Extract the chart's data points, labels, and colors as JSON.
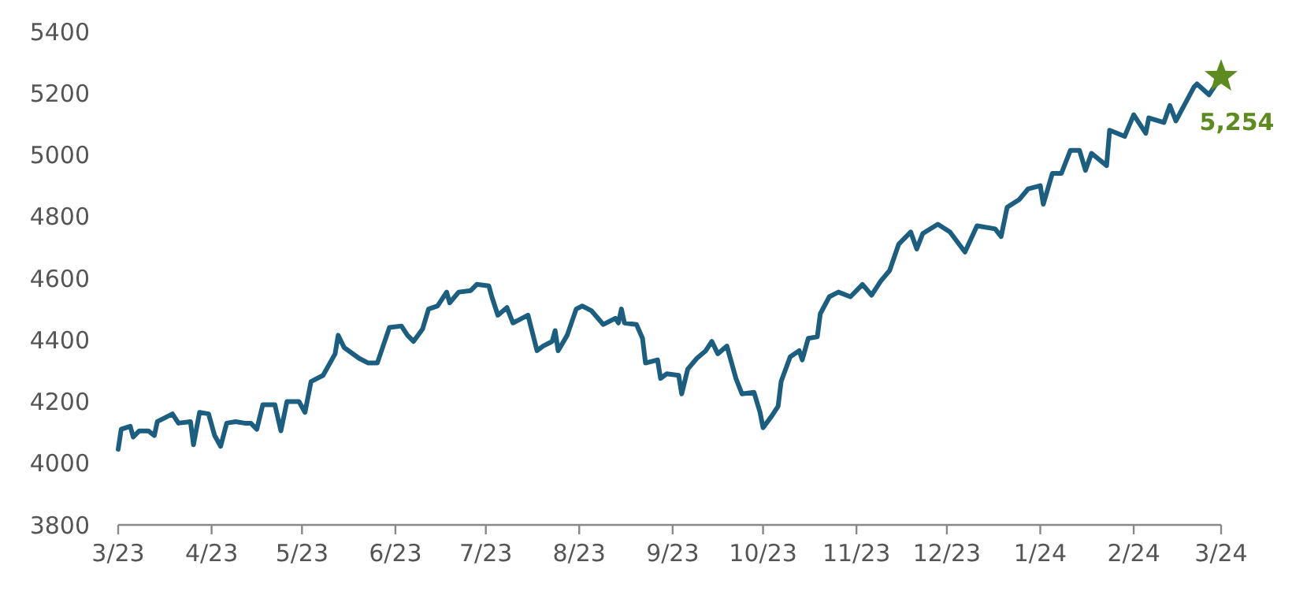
{
  "chart_data": {
    "type": "line",
    "ylim": [
      3800,
      5400
    ],
    "yticks": [
      3800,
      4000,
      4200,
      4400,
      4600,
      4800,
      5000,
      5200,
      5400
    ],
    "xlim": [
      "2023-03-01",
      "2024-03-01"
    ],
    "xticks": [
      {
        "value": "2023-03-01",
        "label": "3/23"
      },
      {
        "value": "2023-04-01",
        "label": "4/23"
      },
      {
        "value": "2023-05-01",
        "label": "5/23"
      },
      {
        "value": "2023-06-01",
        "label": "6/23"
      },
      {
        "value": "2023-07-01",
        "label": "7/23"
      },
      {
        "value": "2023-08-01",
        "label": "8/23"
      },
      {
        "value": "2023-09-01",
        "label": "9/23"
      },
      {
        "value": "2023-10-01",
        "label": "10/23"
      },
      {
        "value": "2023-11-01",
        "label": "11/23"
      },
      {
        "value": "2023-12-01",
        "label": "12/23"
      },
      {
        "value": "2024-01-01",
        "label": "1/24"
      },
      {
        "value": "2024-02-01",
        "label": "2/24"
      },
      {
        "value": "2024-03-01",
        "label": "3/24"
      }
    ],
    "grid": false,
    "series": [
      {
        "color": "#1b5e80",
        "marker": "none",
        "line_style": "solid",
        "x": [
          "2023-03-01",
          "2023-03-02",
          "2023-03-05",
          "2023-03-06",
          "2023-03-08",
          "2023-03-11",
          "2023-03-13",
          "2023-03-14",
          "2023-03-17",
          "2023-03-19",
          "2023-03-21",
          "2023-03-25",
          "2023-03-26",
          "2023-03-28",
          "2023-03-31",
          "2023-04-02",
          "2023-04-04",
          "2023-04-06",
          "2023-04-09",
          "2023-04-12",
          "2023-04-14",
          "2023-04-16",
          "2023-04-18",
          "2023-04-22",
          "2023-04-24",
          "2023-04-26",
          "2023-04-30",
          "2023-05-02",
          "2023-05-04",
          "2023-05-08",
          "2023-05-12",
          "2023-05-13",
          "2023-05-15",
          "2023-05-20",
          "2023-05-23",
          "2023-05-26",
          "2023-05-30",
          "2023-06-03",
          "2023-06-05",
          "2023-06-07",
          "2023-06-10",
          "2023-06-12",
          "2023-06-15",
          "2023-06-18",
          "2023-06-19",
          "2023-06-22",
          "2023-06-26",
          "2023-06-28",
          "2023-07-02",
          "2023-07-03",
          "2023-07-05",
          "2023-07-08",
          "2023-07-10",
          "2023-07-12",
          "2023-07-15",
          "2023-07-18",
          "2023-07-20",
          "2023-07-23",
          "2023-07-24",
          "2023-07-25",
          "2023-07-28",
          "2023-07-31",
          "2023-08-02",
          "2023-08-05",
          "2023-08-09",
          "2023-08-13",
          "2023-08-14",
          "2023-08-15",
          "2023-08-16",
          "2023-08-20",
          "2023-08-22",
          "2023-08-23",
          "2023-08-27",
          "2023-08-28",
          "2023-08-30",
          "2023-09-03",
          "2023-09-04",
          "2023-09-06",
          "2023-09-09",
          "2023-09-12",
          "2023-09-14",
          "2023-09-16",
          "2023-09-19",
          "2023-09-22",
          "2023-09-24",
          "2023-09-28",
          "2023-09-30",
          "2023-10-01",
          "2023-10-04",
          "2023-10-06",
          "2023-10-07",
          "2023-10-10",
          "2023-10-13",
          "2023-10-14",
          "2023-10-16",
          "2023-10-19",
          "2023-10-20",
          "2023-10-23",
          "2023-10-26",
          "2023-10-30",
          "2023-11-03",
          "2023-11-06",
          "2023-11-09",
          "2023-11-12",
          "2023-11-15",
          "2023-11-19",
          "2023-11-21",
          "2023-11-23",
          "2023-11-28",
          "2023-12-02",
          "2023-12-07",
          "2023-12-11",
          "2023-12-17",
          "2023-12-19",
          "2023-12-21",
          "2023-12-25",
          "2023-12-28",
          "2024-01-01",
          "2024-01-02",
          "2024-01-05",
          "2024-01-08",
          "2024-01-11",
          "2024-01-14",
          "2024-01-16",
          "2024-01-18",
          "2024-01-23",
          "2024-01-24",
          "2024-01-29",
          "2024-02-01",
          "2024-02-05",
          "2024-02-06",
          "2024-02-11",
          "2024-02-13",
          "2024-02-15",
          "2024-02-21",
          "2024-02-22",
          "2024-02-26",
          "2024-03-01"
        ],
        "values": [
          4045,
          4110,
          4120,
          4085,
          4105,
          4105,
          4090,
          4135,
          4150,
          4160,
          4130,
          4135,
          4060,
          4165,
          4160,
          4090,
          4055,
          4130,
          4135,
          4130,
          4130,
          4110,
          4190,
          4190,
          4105,
          4200,
          4200,
          4165,
          4265,
          4285,
          4355,
          4415,
          4375,
          4340,
          4325,
          4325,
          4440,
          4445,
          4415,
          4395,
          4435,
          4500,
          4510,
          4555,
          4520,
          4555,
          4560,
          4580,
          4575,
          4540,
          4480,
          4505,
          4455,
          4465,
          4480,
          4365,
          4380,
          4395,
          4430,
          4365,
          4415,
          4500,
          4510,
          4495,
          4450,
          4470,
          4455,
          4500,
          4455,
          4450,
          4405,
          4325,
          4335,
          4275,
          4290,
          4285,
          4225,
          4305,
          4340,
          4365,
          4395,
          4355,
          4380,
          4275,
          4225,
          4230,
          4165,
          4115,
          4155,
          4185,
          4265,
          4345,
          4365,
          4335,
          4405,
          4410,
          4485,
          4540,
          4555,
          4540,
          4580,
          4545,
          4590,
          4625,
          4710,
          4750,
          4695,
          4745,
          4775,
          4750,
          4685,
          4770,
          4760,
          4735,
          4830,
          4855,
          4890,
          4900,
          4840,
          4940,
          4940,
          5015,
          5015,
          4950,
          5005,
          4965,
          5080,
          5060,
          5130,
          5070,
          5120,
          5105,
          5160,
          5110,
          5220,
          5230,
          5195,
          5254
        ]
      },
      {
        "type": "scatter",
        "color": "#5e8b1f",
        "marker": "star",
        "x": [
          "2024-03-01"
        ],
        "values": [
          5254
        ],
        "value_labels": [
          "5,254"
        ]
      }
    ]
  }
}
